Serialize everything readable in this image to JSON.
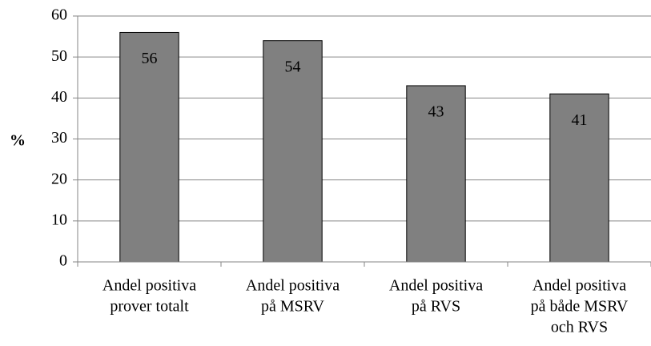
{
  "chart_data": {
    "type": "bar",
    "y_label": "%",
    "categories": [
      [
        "Andel positiva",
        "prover totalt"
      ],
      [
        "Andel positiva",
        "på MSRV"
      ],
      [
        "Andel positiva",
        "på RVS"
      ],
      [
        "Andel positiva",
        "på både MSRV",
        "och RVS"
      ]
    ],
    "values": [
      56,
      54,
      43,
      41
    ],
    "color": "#808080",
    "ylim": [
      0,
      60
    ],
    "yticks": [
      0,
      10,
      20,
      30,
      40,
      50,
      60
    ],
    "grid": true
  }
}
